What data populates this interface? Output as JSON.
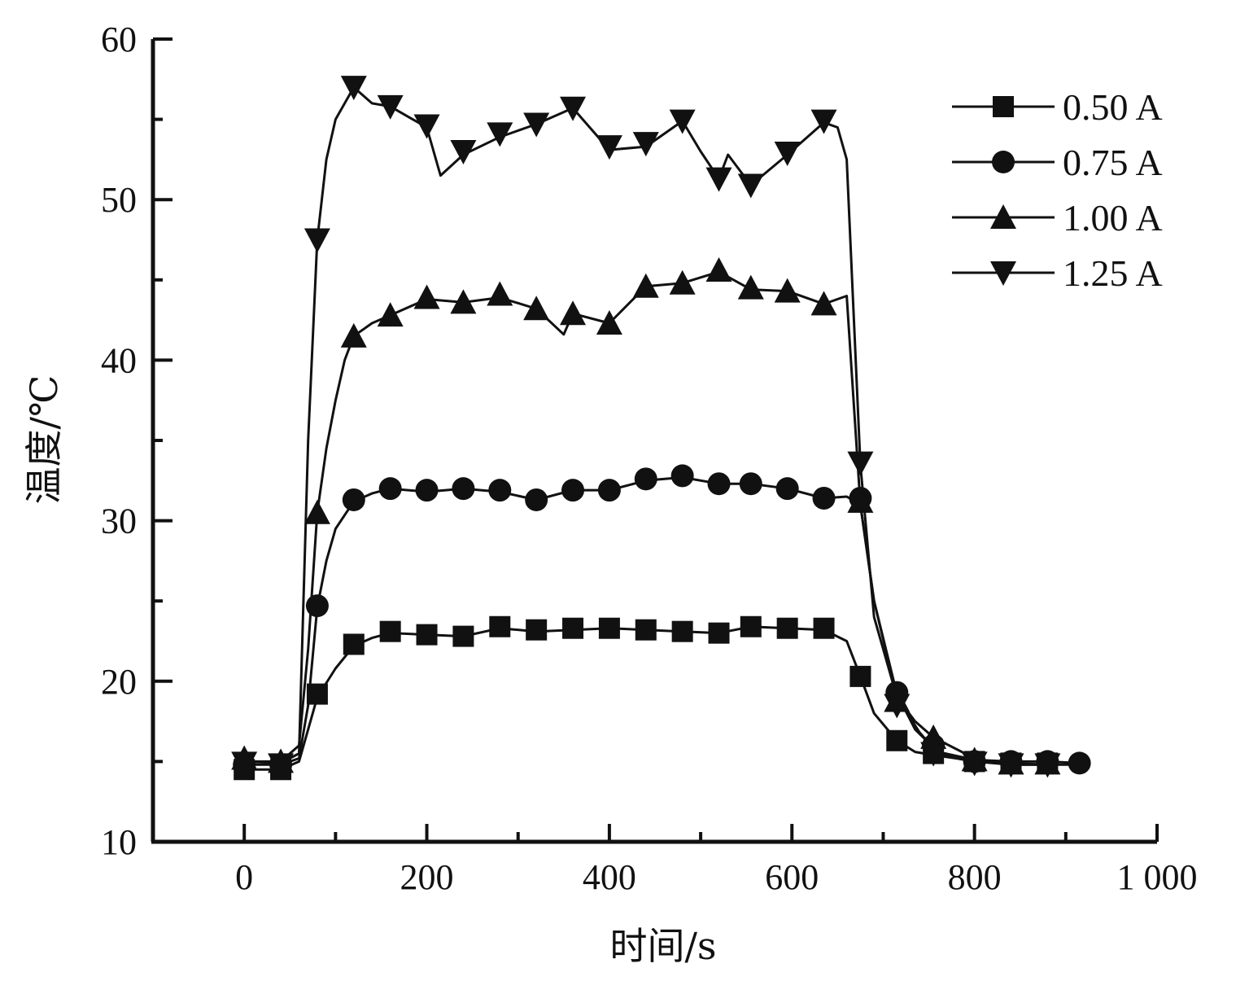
{
  "chart_data": {
    "type": "line",
    "title": "",
    "xlabel": "时间/s",
    "ylabel": "温度/℃",
    "xlim": [
      -100,
      1000
    ],
    "ylim": [
      10,
      60
    ],
    "xticks": [
      0,
      200,
      400,
      600,
      800,
      1000
    ],
    "xtick_labels": [
      "0",
      "200",
      "400",
      "600",
      "800",
      "1 000"
    ],
    "yticks": [
      10,
      20,
      30,
      40,
      50,
      60
    ],
    "ytick_labels": [
      "10",
      "20",
      "30",
      "40",
      "50",
      "60"
    ],
    "legend_position": "top-right",
    "grid": false,
    "series": [
      {
        "name": "0.50 A",
        "marker": "square",
        "x": [
          0,
          40,
          60,
          70,
          80,
          100,
          120,
          140,
          160,
          200,
          240,
          280,
          320,
          360,
          400,
          440,
          480,
          520,
          555,
          595,
          635,
          660,
          675,
          690,
          715,
          735,
          755,
          780,
          800,
          840,
          880,
          915
        ],
        "y": [
          14.5,
          14.5,
          15.0,
          17.0,
          19.0,
          20.8,
          22.2,
          22.7,
          23.0,
          22.9,
          22.8,
          23.3,
          23.1,
          23.2,
          23.3,
          23.2,
          23.1,
          23.0,
          23.4,
          23.3,
          23.2,
          22.5,
          20.3,
          18.0,
          16.3,
          15.6,
          15.4,
          15.2,
          15.0,
          14.9,
          14.8,
          14.8
        ],
        "marker_x": [
          0,
          40,
          80,
          120,
          160,
          200,
          240,
          280,
          320,
          360,
          400,
          440,
          480,
          520,
          555,
          595,
          635,
          675,
          715,
          755,
          800,
          840,
          880
        ],
        "marker_y": [
          14.5,
          14.5,
          19.2,
          22.3,
          23.1,
          22.9,
          22.8,
          23.4,
          23.2,
          23.3,
          23.3,
          23.2,
          23.1,
          23.0,
          23.4,
          23.3,
          23.3,
          20.3,
          16.3,
          15.5,
          15.0,
          14.9,
          14.9
        ]
      },
      {
        "name": "0.75 A",
        "marker": "circle",
        "x": [
          0,
          40,
          60,
          70,
          80,
          90,
          100,
          120,
          140,
          160,
          200,
          240,
          280,
          320,
          360,
          400,
          440,
          480,
          520,
          555,
          595,
          635,
          660,
          675,
          690,
          715,
          735,
          760,
          800,
          840,
          880,
          915
        ],
        "y": [
          14.8,
          14.8,
          15.2,
          18.5,
          24.6,
          27.5,
          29.5,
          31.2,
          31.7,
          32.0,
          31.8,
          32.0,
          31.8,
          31.3,
          31.9,
          31.9,
          32.5,
          32.7,
          32.3,
          32.3,
          32.0,
          31.4,
          31.5,
          31.0,
          25.0,
          19.2,
          17.0,
          15.6,
          15.1,
          15.0,
          15.0,
          14.9
        ],
        "marker_x": [
          0,
          40,
          80,
          120,
          160,
          200,
          240,
          280,
          320,
          360,
          400,
          440,
          480,
          520,
          555,
          595,
          635,
          675,
          715,
          755,
          800,
          840,
          880,
          915
        ],
        "marker_y": [
          14.8,
          14.8,
          24.7,
          31.3,
          32.0,
          31.9,
          32.0,
          31.9,
          31.3,
          31.9,
          31.9,
          32.6,
          32.8,
          32.3,
          32.3,
          32.0,
          31.4,
          31.4,
          19.3,
          16.0,
          15.0,
          15.0,
          15.0,
          14.9
        ]
      },
      {
        "name": "1.00 A",
        "marker": "triangle-up",
        "x": [
          0,
          40,
          60,
          70,
          80,
          90,
          100,
          110,
          120,
          140,
          160,
          200,
          240,
          280,
          320,
          350,
          360,
          400,
          440,
          480,
          520,
          555,
          595,
          635,
          660,
          675,
          690,
          715,
          735,
          755,
          800,
          840,
          880
        ],
        "y": [
          15.0,
          15.0,
          16.0,
          22.0,
          30.5,
          34.5,
          37.5,
          40.0,
          41.5,
          42.3,
          42.8,
          43.8,
          43.6,
          43.9,
          43.2,
          41.6,
          42.9,
          42.3,
          44.6,
          44.8,
          45.5,
          44.4,
          44.3,
          43.5,
          44.0,
          31.0,
          25.0,
          19.0,
          17.5,
          16.5,
          15.2,
          14.8,
          14.8
        ],
        "marker_x": [
          0,
          40,
          80,
          120,
          160,
          200,
          240,
          280,
          320,
          360,
          400,
          440,
          480,
          520,
          555,
          595,
          635,
          675,
          715,
          755,
          800,
          840,
          880
        ],
        "marker_y": [
          15.2,
          15.0,
          30.5,
          41.5,
          42.8,
          43.9,
          43.6,
          44.1,
          43.2,
          42.9,
          42.3,
          44.6,
          44.8,
          45.6,
          44.5,
          44.3,
          43.5,
          31.2,
          18.8,
          16.5,
          15.1,
          14.9,
          14.9
        ]
      },
      {
        "name": "1.25 A",
        "marker": "triangle-down",
        "x": [
          0,
          40,
          60,
          70,
          80,
          90,
          100,
          120,
          140,
          160,
          200,
          215,
          240,
          280,
          320,
          360,
          400,
          440,
          480,
          500,
          520,
          530,
          555,
          595,
          635,
          650,
          660,
          675,
          690,
          715,
          740,
          760,
          800,
          840,
          880
        ],
        "y": [
          15.0,
          14.9,
          15.5,
          35.0,
          47.5,
          52.5,
          55.0,
          57.0,
          56.0,
          55.8,
          54.5,
          51.5,
          52.8,
          53.9,
          54.7,
          55.7,
          53.1,
          53.3,
          54.9,
          53.0,
          51.3,
          52.8,
          50.9,
          52.8,
          54.8,
          54.5,
          52.5,
          33.5,
          24.0,
          19.0,
          16.8,
          15.5,
          15.0,
          14.8,
          14.8
        ],
        "marker_x": [
          0,
          40,
          80,
          120,
          160,
          200,
          240,
          280,
          320,
          360,
          400,
          440,
          480,
          520,
          555,
          595,
          635,
          675,
          715,
          755,
          800,
          840,
          880
        ],
        "marker_y": [
          14.9,
          14.8,
          47.5,
          57.0,
          55.8,
          54.6,
          53.0,
          54.1,
          54.7,
          55.7,
          53.3,
          53.5,
          54.9,
          51.3,
          50.9,
          52.9,
          54.9,
          33.6,
          18.5,
          15.5,
          14.9,
          14.8,
          14.8
        ]
      }
    ]
  }
}
